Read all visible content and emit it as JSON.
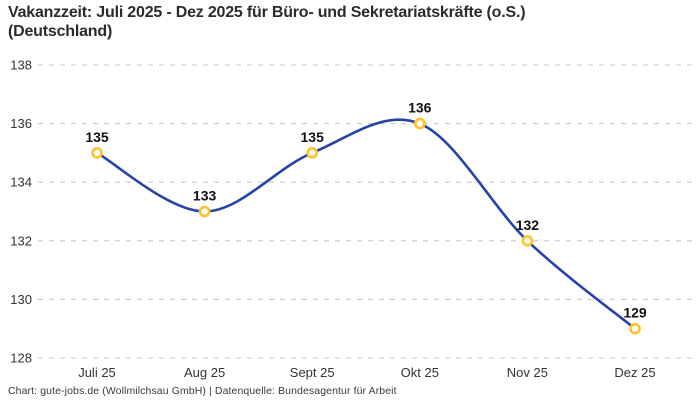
{
  "header": {
    "title_line1": "Vakanzzeit: Juli 2025 - Dez 2025 für Büro- und Sekretariatskräfte (o.S.)",
    "title_line2": "(Deutschland)"
  },
  "footer": {
    "text": "Chart: gute-jobs.de (Wollmilchsau GmbH) | Datenquelle: Bundesagentur für Arbeit"
  },
  "colors": {
    "line": "#2743a6",
    "marker_stroke": "#fcc32c",
    "marker_fill": "#ffffff",
    "grid": "#c9c9c9",
    "tick_text": "#333333",
    "value_text": "#111111"
  },
  "chart_data": {
    "type": "line",
    "title": "Vakanzzeit: Juli 2025 - Dez 2025 für Büro- und Sekretariatskräfte (o.S.) (Deutschland)",
    "categories": [
      "Juli 25",
      "Aug 25",
      "Sept 25",
      "Okt 25",
      "Nov 25",
      "Dez 25"
    ],
    "values": [
      135,
      133,
      135,
      136,
      132,
      129
    ],
    "xlabel": "",
    "ylabel": "",
    "ylim": [
      128,
      138
    ],
    "yticks": [
      128,
      130,
      132,
      134,
      136,
      138
    ],
    "grid": "horizontal-dashed",
    "legend": "none",
    "point_labels": true,
    "line_style": "smooth"
  }
}
